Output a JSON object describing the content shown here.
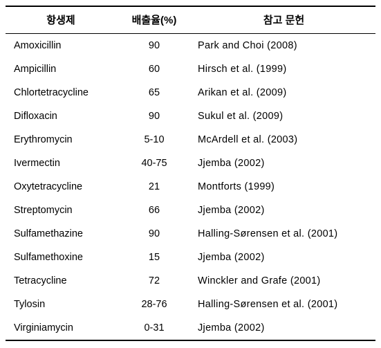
{
  "table": {
    "columns": [
      {
        "key": "antibiotic",
        "label": "항생제"
      },
      {
        "key": "rate",
        "label": "배출율(%)"
      },
      {
        "key": "reference",
        "label": "참고 문헌"
      }
    ],
    "rows": [
      {
        "antibiotic": "Amoxicillin",
        "rate": "90",
        "reference": "Park and Choi (2008)"
      },
      {
        "antibiotic": "Ampicillin",
        "rate": "60",
        "reference": "Hirsch et al. (1999)"
      },
      {
        "antibiotic": "Chlortetracycline",
        "rate": "65",
        "reference": "Arikan et al. (2009)"
      },
      {
        "antibiotic": "Difloxacin",
        "rate": "90",
        "reference": "Sukul et al. (2009)"
      },
      {
        "antibiotic": "Erythromycin",
        "rate": "5-10",
        "reference": "McArdell et al. (2003)"
      },
      {
        "antibiotic": "Ivermectin",
        "rate": "40-75",
        "reference": "Jjemba (2002)"
      },
      {
        "antibiotic": "Oxytetracycline",
        "rate": "21",
        "reference": "Montforts (1999)"
      },
      {
        "antibiotic": "Streptomycin",
        "rate": "66",
        "reference": "Jjemba (2002)"
      },
      {
        "antibiotic": "Sulfamethazine",
        "rate": "90",
        "reference": "Halling-Sørensen et al. (2001)"
      },
      {
        "antibiotic": "Sulfamethoxine",
        "rate": "15",
        "reference": "Jjemba (2002)"
      },
      {
        "antibiotic": "Tetracycline",
        "rate": "72",
        "reference": "Winckler and Grafe (2001)"
      },
      {
        "antibiotic": "Tylosin",
        "rate": "28-76",
        "reference": "Halling-Sørensen et al. (2001)"
      },
      {
        "antibiotic": "Virginiamycin",
        "rate": "0-31",
        "reference": "Jjemba (2002)"
      }
    ],
    "border_color": "#000000",
    "background_color": "#ffffff",
    "header_fontsize": 15,
    "body_fontsize": 14.5
  }
}
